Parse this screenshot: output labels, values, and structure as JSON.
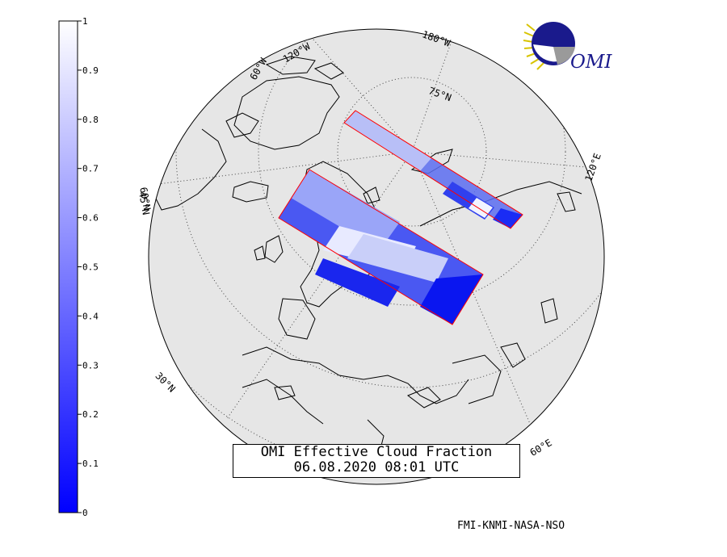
{
  "title": {
    "line1": "OMI Effective Cloud Fraction",
    "line2": "06.08.2020 08:01 UTC"
  },
  "credit": "FMI-KNMI-NASA-NSO",
  "logo": {
    "text": "OMI",
    "icon": "omi-sun-globe-logo"
  },
  "colorbar": {
    "min": 0,
    "max": 1,
    "ticks": [
      "0",
      "0.1",
      "0.2",
      "0.3",
      "0.4",
      "0.5",
      "0.6",
      "0.7",
      "0.8",
      "0.9",
      "1"
    ],
    "color_low": "#0000ff",
    "color_high": "#ffffff"
  },
  "graticule_labels": {
    "lon_180": "180°W",
    "lon_120w": "120°W",
    "lon_60w": "60°W",
    "lon_0": "0°N",
    "lon_60e": "60°E",
    "lon_120e": "120°E",
    "lat_75": "75°N",
    "lat_60": "60°N",
    "lat_45": "45°N",
    "lat_30": "30°N"
  },
  "colors": {
    "land": "#e6e6e6",
    "coast": "#000000",
    "swath_edge": "#ff0000",
    "grid": "#444444"
  }
}
